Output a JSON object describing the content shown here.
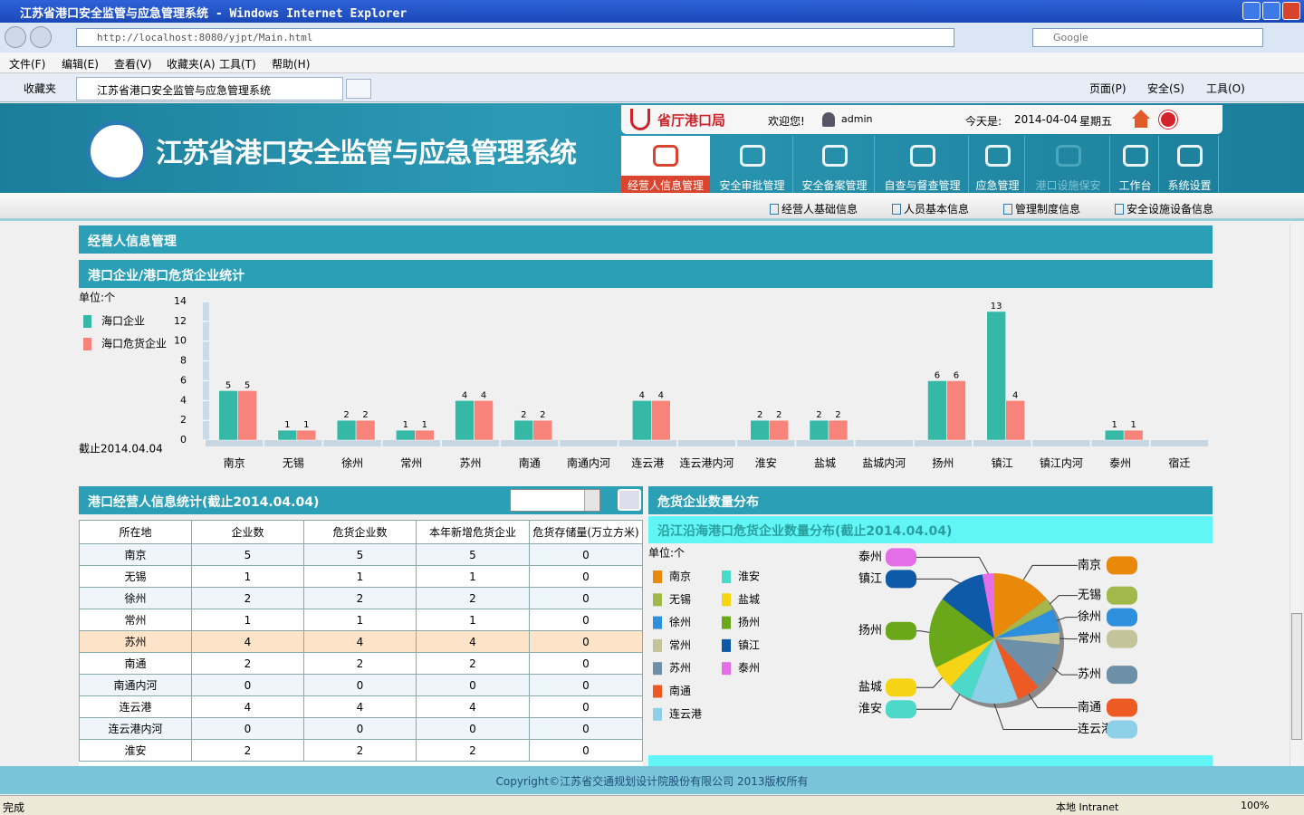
{
  "window": {
    "title": "江苏省港口安全监管与应急管理系统 - Windows Internet Explorer"
  },
  "browser": {
    "url": "http://localhost:8080/yjpt/Main.html",
    "search": "Google",
    "menu": [
      "文件(F)",
      "编辑(E)",
      "查看(V)",
      "收藏夹(A)",
      "工具(T)",
      "帮助(H)"
    ],
    "favorites": "收藏夹",
    "tab": "江苏省港口安全监管与应急管理系统",
    "toolbar": [
      "页面(P)",
      "安全(S)",
      "工具(O)"
    ],
    "status": "完成",
    "zone": "本地 Intranet",
    "zoom": "100%"
  },
  "header": {
    "system_title": "江苏省港口安全监管与应急管理系统",
    "org": "省厅港口局",
    "welcome": "欢迎您!",
    "user": "admin",
    "date_label": "今天是:",
    "date": "2014-04-04",
    "weekday": "星期五"
  },
  "nav": [
    "经营人信息管理",
    "安全审批管理",
    "安全备案管理",
    "自查与督查管理",
    "应急管理",
    "港口设施保安",
    "工作台",
    "系统设置"
  ],
  "subnav": [
    "经营人基础信息",
    "人员基本信息",
    "管理制度信息",
    "安全设施设备信息"
  ],
  "section": "经营人信息管理",
  "chart_data": [
    {
      "type": "bar",
      "title": "港口企业/港口危货企业统计",
      "unit": "单位:个",
      "note": "截止2014.04.04",
      "categories": [
        "南京",
        "无锡",
        "徐州",
        "常州",
        "苏州",
        "南通",
        "南通内河",
        "连云港",
        "连云港内河",
        "淮安",
        "盐城",
        "盐城内河",
        "扬州",
        "镇江",
        "镇江内河",
        "泰州",
        "宿迁"
      ],
      "series": [
        {
          "name": "海口企业",
          "color": "#35b9a6",
          "values": [
            5,
            1,
            2,
            1,
            4,
            2,
            0,
            4,
            0,
            2,
            2,
            0,
            6,
            13,
            0,
            1,
            0
          ]
        },
        {
          "name": "海口危货企业",
          "color": "#f8837b",
          "values": [
            5,
            1,
            2,
            1,
            4,
            2,
            0,
            4,
            0,
            2,
            2,
            0,
            6,
            4,
            0,
            1,
            0
          ]
        }
      ],
      "ylim": [
        0,
        14
      ],
      "yticks": [
        0,
        2,
        4,
        6,
        8,
        10,
        12,
        14
      ],
      "legend": "left",
      "data_labels": true
    },
    {
      "type": "pie",
      "title": "危货企业数量分布",
      "subtitle": "沿江沿海港口危货企业数量分布(截止2014.04.04)",
      "unit": "单位:个",
      "categories": [
        "南京",
        "无锡",
        "徐州",
        "常州",
        "苏州",
        "南通",
        "连云港",
        "淮安",
        "盐城",
        "扬州",
        "镇江",
        "泰州"
      ],
      "values": [
        5,
        1,
        2,
        1,
        4,
        2,
        4,
        2,
        2,
        6,
        4,
        1
      ],
      "colors": [
        "#e8890c",
        "#a3b84a",
        "#2e8fdc",
        "#c4c49a",
        "#6e8fa8",
        "#ee5a23",
        "#8dd0e8",
        "#4dd9c9",
        "#f5d416",
        "#6aa81a",
        "#0f5aa8",
        "#e46ee8"
      ]
    }
  ],
  "table": {
    "title": "港口经营人信息统计(截止2014.04.04)",
    "columns": [
      "所在地",
      "企业数",
      "危货企业数",
      "本年新增危货企业",
      "危货存储量(万立方米)"
    ],
    "rows": [
      [
        "南京",
        5,
        5,
        5,
        0
      ],
      [
        "无锡",
        1,
        1,
        1,
        0
      ],
      [
        "徐州",
        2,
        2,
        2,
        0
      ],
      [
        "常州",
        1,
        1,
        1,
        0
      ],
      [
        "苏州",
        4,
        4,
        4,
        0
      ],
      [
        "南通",
        2,
        2,
        2,
        0
      ],
      [
        "南通内河",
        0,
        0,
        0,
        0
      ],
      [
        "连云港",
        4,
        4,
        4,
        0
      ],
      [
        "连云港内河",
        0,
        0,
        0,
        0
      ],
      [
        "淮安",
        2,
        2,
        2,
        0
      ]
    ]
  },
  "footer": "Copyright©江苏省交通规划设计院股份有限公司 2013版权所有"
}
